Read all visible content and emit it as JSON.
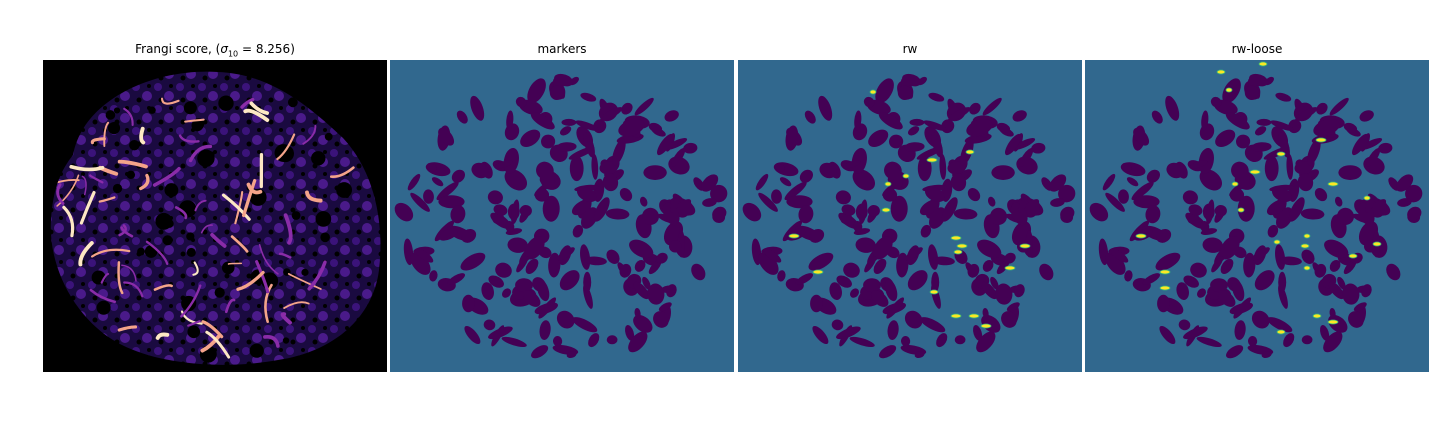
{
  "panels": [
    {
      "title_prefix": "Frangi score, (",
      "sigma_symbol": "σ",
      "sigma_subscript": "10",
      "sigma_equals": " = 8.256)",
      "colormap": "magma"
    },
    {
      "title": "markers",
      "colormap": "viridis"
    },
    {
      "title": "rw",
      "colormap": "viridis"
    },
    {
      "title": "rw-loose",
      "colormap": "viridis"
    }
  ],
  "colors": {
    "magma_background": "#000000",
    "magma_low": "#2c1160",
    "magma_mid": "#8a2ca8",
    "magma_high": "#f4a48a",
    "magma_peak": "#fde8c4",
    "viridis_background": "#31688e",
    "viridis_region": "#440154",
    "viridis_highlight": "#fde725",
    "viridis_edge": "#35b779"
  }
}
